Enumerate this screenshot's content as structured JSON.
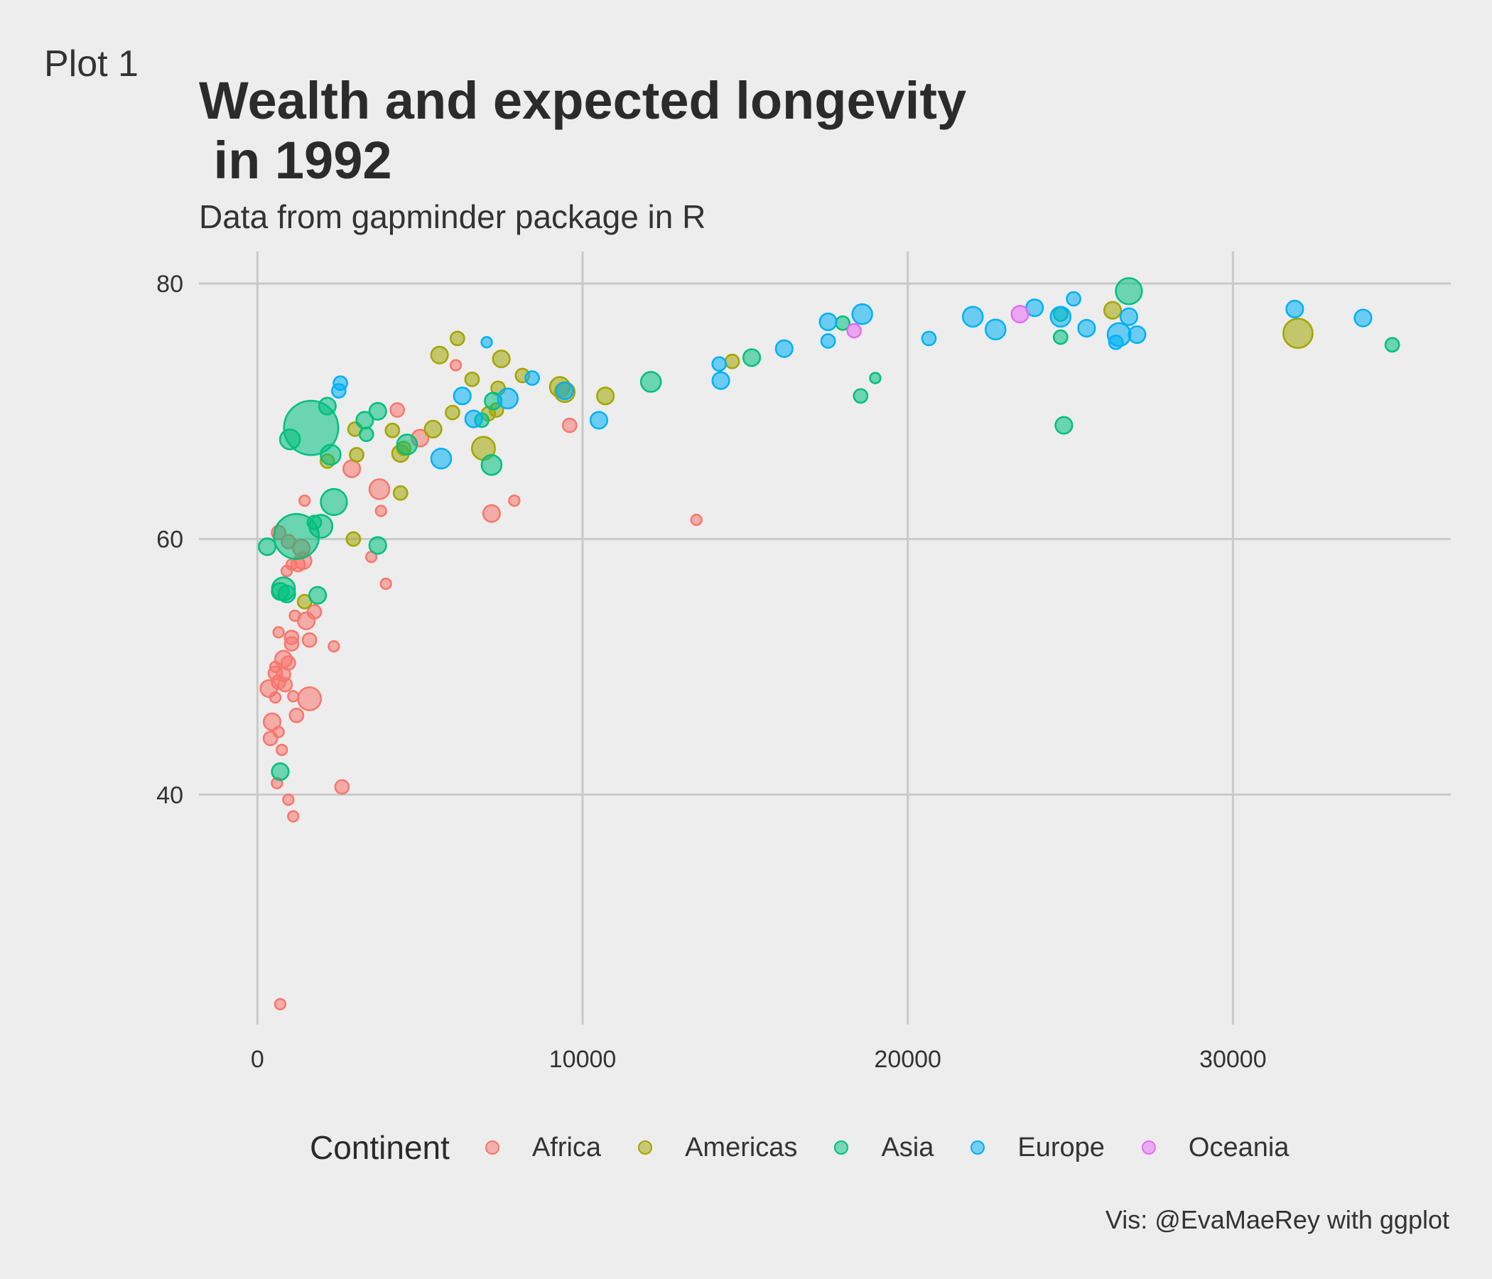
{
  "tag": "Plot 1",
  "caption": "Vis: @EvaMaeRey with ggplot",
  "colors": {
    "Africa": "#F8766D",
    "Americas": "#A3A500",
    "Asia": "#00BF7D",
    "Europe": "#00B0F6",
    "Oceania": "#E76BF3",
    "grid": "#c9c9c9",
    "background": "#ededed"
  },
  "chart_data": {
    "type": "scatter",
    "title": "Wealth and expected longevity\n in 1992",
    "subtitle": "Data from gapminder package in R",
    "xlabel": "",
    "ylabel": "",
    "xlim": [
      -1800,
      36700
    ],
    "ylim": [
      22,
      82.5
    ],
    "xticks": [
      0,
      10000,
      20000,
      30000
    ],
    "yticks": [
      40,
      60,
      80
    ],
    "grid": true,
    "legend": {
      "title": "Continent",
      "placement": "bottom",
      "entries": [
        "Africa",
        "Americas",
        "Asia",
        "Europe",
        "Oceania"
      ]
    },
    "series": [
      {
        "name": "Africa",
        "points": [
          [
            700,
            23.6,
            2
          ],
          [
            1100,
            38.3,
            2
          ],
          [
            950,
            39.6,
            2
          ],
          [
            600,
            40.9,
            2
          ],
          [
            2600,
            40.6,
            3
          ],
          [
            750,
            43.5,
            2
          ],
          [
            400,
            44.4,
            3
          ],
          [
            650,
            44.9,
            2
          ],
          [
            450,
            45.7,
            4
          ],
          [
            1200,
            46.2,
            3
          ],
          [
            550,
            47.6,
            2
          ],
          [
            1600,
            47.5,
            6
          ],
          [
            1100,
            47.7,
            2
          ],
          [
            350,
            48.3,
            4
          ],
          [
            850,
            48.6,
            3
          ],
          [
            650,
            48.8,
            3
          ],
          [
            550,
            49.5,
            3
          ],
          [
            800,
            49.4,
            3
          ],
          [
            950,
            50.3,
            3
          ],
          [
            550,
            50.0,
            2
          ],
          [
            800,
            50.6,
            4
          ],
          [
            2350,
            51.6,
            2
          ],
          [
            1050,
            51.8,
            3
          ],
          [
            1600,
            52.1,
            3
          ],
          [
            1050,
            52.3,
            3
          ],
          [
            650,
            52.7,
            2
          ],
          [
            1500,
            53.6,
            4
          ],
          [
            1750,
            54.3,
            3
          ],
          [
            1150,
            54.0,
            2
          ],
          [
            3950,
            56.5,
            2
          ],
          [
            900,
            57.5,
            2
          ],
          [
            1250,
            58.0,
            3
          ],
          [
            1050,
            58.0,
            2
          ],
          [
            1400,
            58.3,
            4
          ],
          [
            1350,
            59.3,
            4
          ],
          [
            3500,
            58.6,
            2
          ],
          [
            950,
            59.8,
            3
          ],
          [
            650,
            60.5,
            3
          ],
          [
            1450,
            63.0,
            2
          ],
          [
            3800,
            62.2,
            2
          ],
          [
            7200,
            62.0,
            4
          ],
          [
            7900,
            63.0,
            2
          ],
          [
            13500,
            61.5,
            2
          ],
          [
            3750,
            63.9,
            5
          ],
          [
            2900,
            65.5,
            4
          ],
          [
            5000,
            67.9,
            4
          ],
          [
            4300,
            70.1,
            3
          ],
          [
            6100,
            73.6,
            2
          ],
          [
            9600,
            68.9,
            3
          ]
        ]
      },
      {
        "name": "Americas",
        "points": [
          [
            1450,
            55.1,
            3
          ],
          [
            2950,
            60.0,
            3
          ],
          [
            4400,
            63.6,
            3
          ],
          [
            2150,
            66.1,
            3
          ],
          [
            3050,
            66.6,
            3
          ],
          [
            4400,
            66.7,
            4
          ],
          [
            4500,
            67.1,
            3
          ],
          [
            5400,
            68.6,
            4
          ],
          [
            4150,
            68.5,
            3
          ],
          [
            3000,
            68.6,
            3
          ],
          [
            6950,
            67.1,
            6
          ],
          [
            6000,
            69.9,
            3
          ],
          [
            7100,
            69.8,
            3
          ],
          [
            7350,
            70.1,
            3
          ],
          [
            9300,
            71.9,
            5
          ],
          [
            9450,
            71.5,
            5
          ],
          [
            10700,
            71.2,
            4
          ],
          [
            7400,
            71.8,
            3
          ],
          [
            8150,
            72.8,
            3
          ],
          [
            6600,
            72.5,
            3
          ],
          [
            7500,
            74.1,
            4
          ],
          [
            5600,
            74.4,
            4
          ],
          [
            6150,
            75.7,
            3
          ],
          [
            14600,
            73.9,
            3
          ],
          [
            26300,
            77.9,
            4
          ],
          [
            32000,
            76.1,
            8
          ]
        ]
      },
      {
        "name": "Asia",
        "points": [
          [
            300,
            59.4,
            4
          ],
          [
            700,
            41.8,
            4
          ],
          [
            700,
            55.9,
            4
          ],
          [
            800,
            56.1,
            6
          ],
          [
            900,
            55.7,
            4
          ],
          [
            1850,
            55.6,
            4
          ],
          [
            1750,
            61.3,
            3
          ],
          [
            1200,
            60.2,
            13
          ],
          [
            1950,
            61.0,
            6
          ],
          [
            2350,
            62.9,
            7
          ],
          [
            3700,
            59.5,
            4
          ],
          [
            1000,
            67.8,
            5
          ],
          [
            1650,
            68.7,
            16
          ],
          [
            2250,
            66.6,
            5
          ],
          [
            3350,
            68.2,
            3
          ],
          [
            3300,
            69.3,
            4
          ],
          [
            3700,
            70.0,
            4
          ],
          [
            2150,
            70.4,
            4
          ],
          [
            4600,
            67.4,
            5
          ],
          [
            6900,
            69.3,
            3
          ],
          [
            7200,
            65.8,
            5
          ],
          [
            7250,
            70.8,
            4
          ],
          [
            12100,
            72.3,
            5
          ],
          [
            15200,
            74.2,
            4
          ],
          [
            18000,
            76.9,
            3
          ],
          [
            18550,
            71.2,
            3
          ],
          [
            19000,
            72.6,
            2
          ],
          [
            24700,
            77.6,
            3
          ],
          [
            24700,
            75.8,
            3
          ],
          [
            24800,
            68.9,
            4
          ],
          [
            26800,
            79.4,
            7
          ],
          [
            34900,
            75.2,
            3
          ]
        ]
      },
      {
        "name": "Europe",
        "points": [
          [
            2500,
            71.6,
            3
          ],
          [
            2550,
            72.2,
            3
          ],
          [
            5650,
            66.3,
            5
          ],
          [
            6300,
            71.2,
            4
          ],
          [
            6650,
            69.4,
            4
          ],
          [
            7050,
            75.4,
            2
          ],
          [
            7700,
            71.0,
            5
          ],
          [
            8450,
            72.6,
            3
          ],
          [
            9450,
            71.6,
            4
          ],
          [
            10500,
            69.3,
            4
          ],
          [
            14250,
            72.4,
            4
          ],
          [
            14200,
            73.7,
            3
          ],
          [
            16200,
            74.9,
            4
          ],
          [
            17550,
            75.5,
            3
          ],
          [
            17550,
            77.0,
            4
          ],
          [
            18600,
            77.6,
            5
          ],
          [
            20650,
            75.7,
            3
          ],
          [
            22000,
            77.4,
            5
          ],
          [
            22700,
            76.4,
            5
          ],
          [
            23900,
            78.1,
            4
          ],
          [
            24700,
            77.4,
            5
          ],
          [
            25100,
            78.8,
            3
          ],
          [
            25500,
            76.5,
            4
          ],
          [
            26400,
            75.4,
            3
          ],
          [
            26500,
            76.0,
            6
          ],
          [
            26800,
            77.4,
            4
          ],
          [
            27050,
            76.0,
            4
          ],
          [
            31900,
            78.0,
            4
          ],
          [
            34000,
            77.3,
            4
          ]
        ]
      },
      {
        "name": "Oceania",
        "points": [
          [
            18350,
            76.3,
            3
          ],
          [
            23450,
            77.6,
            4
          ]
        ]
      }
    ]
  }
}
